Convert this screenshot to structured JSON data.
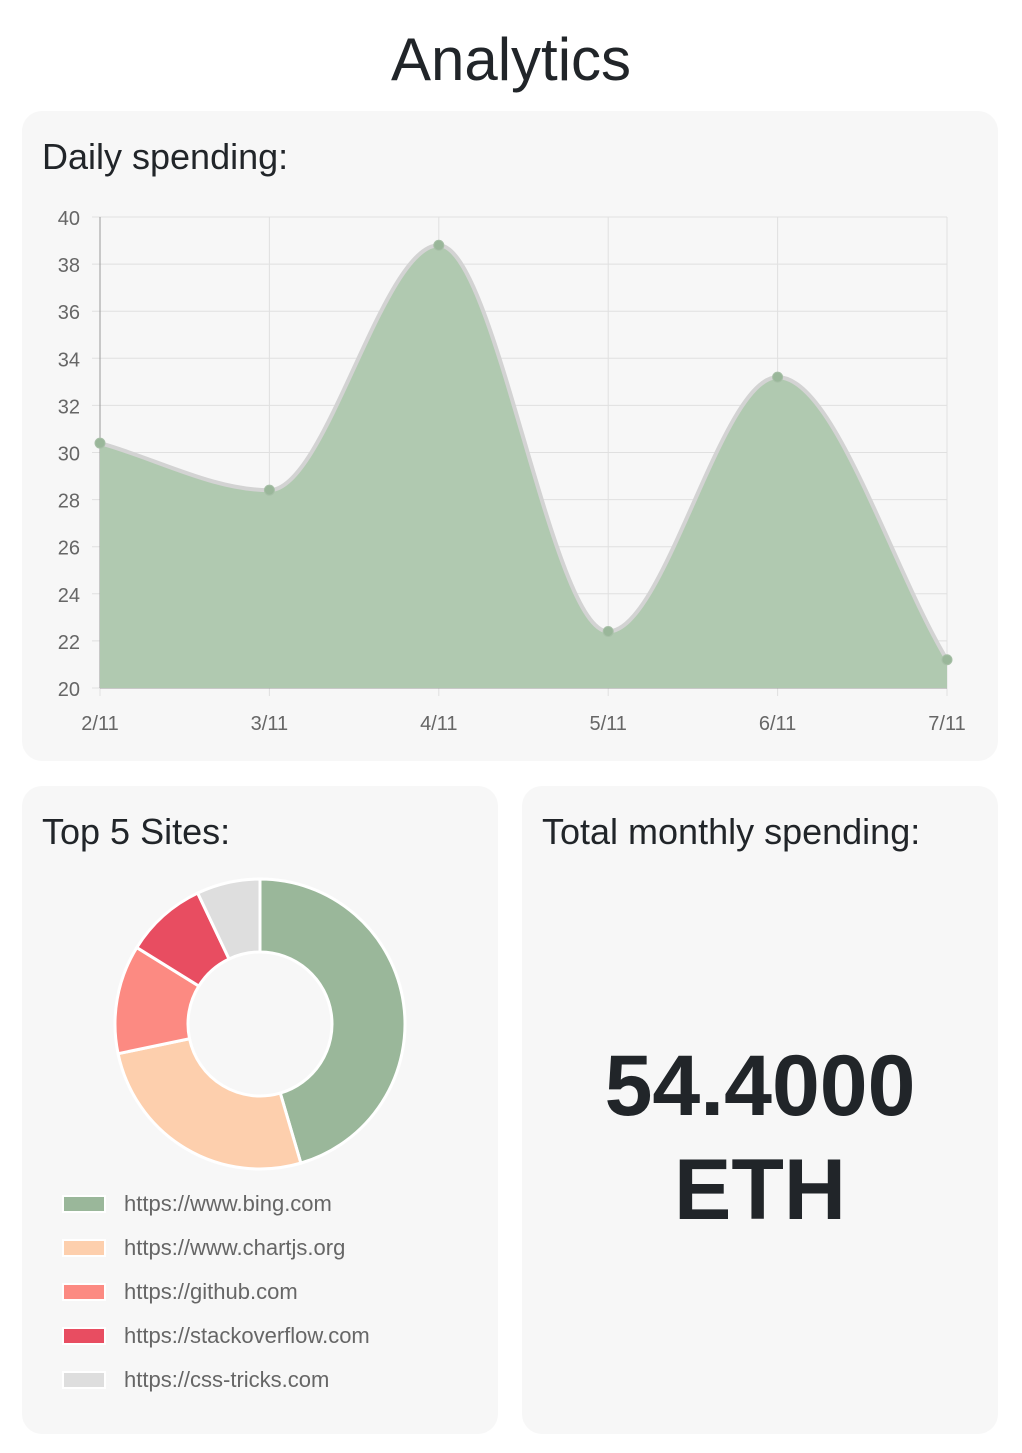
{
  "page": {
    "title": "Analytics"
  },
  "daily": {
    "title": "Daily spending:"
  },
  "sites": {
    "title": "Top 5 Sites:"
  },
  "total": {
    "title": "Total monthly spending:",
    "amount": "54.4000",
    "unit": "ETH"
  },
  "colors": {
    "line_fill": "#b0c9b0",
    "line_stroke": "#d3d3d3",
    "point": "#9ab79a",
    "grid": "#e0e0e0",
    "tick": "#666666"
  },
  "chart_data": [
    {
      "type": "area",
      "title": "Daily spending:",
      "categories": [
        "2/11",
        "3/11",
        "4/11",
        "5/11",
        "6/11",
        "7/11"
      ],
      "values": [
        30.4,
        28.4,
        38.8,
        22.4,
        33.2,
        21.2
      ],
      "ylim": [
        20,
        40
      ],
      "yticks": [
        20,
        22,
        24,
        26,
        28,
        30,
        32,
        34,
        36,
        38,
        40
      ],
      "grid": true,
      "legend": "none"
    },
    {
      "type": "pie",
      "variant": "doughnut",
      "title": "Top 5 Sites:",
      "labels": [
        "https://www.bing.com",
        "https://www.chartjs.org",
        "https://github.com",
        "https://stackoverflow.com",
        "https://css-tricks.com"
      ],
      "values": [
        45,
        26,
        12,
        9,
        7
      ],
      "colors": [
        "#9ab79a",
        "#fdcfad",
        "#fc8a82",
        "#e84d61",
        "#dedede"
      ],
      "legend": "bottom"
    }
  ]
}
